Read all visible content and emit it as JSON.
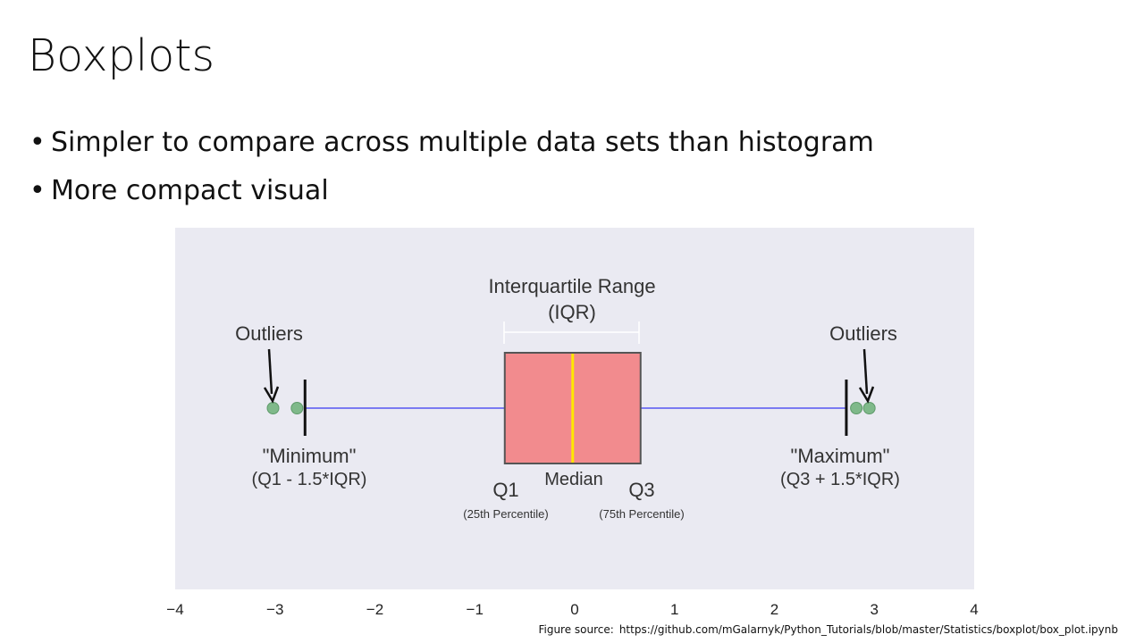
{
  "slide": {
    "title": "Boxplots",
    "bullets": [
      "Simpler to compare across multiple data sets than histogram",
      "More compact visual"
    ],
    "bullet_symbol": "•",
    "figure_source_label": "Figure source:",
    "figure_source_url": "https://github.com/mGalarnyk/Python_Tutorials/blob/master/Statistics/boxplot/box_plot.ipynb"
  },
  "chart_data": {
    "type": "boxplot",
    "orientation": "horizontal",
    "xlim": [
      -4,
      4
    ],
    "x_ticks": [
      "−4",
      "−3",
      "−2",
      "−1",
      "0",
      "1",
      "2",
      "3",
      "4"
    ],
    "box": {
      "q1": -0.7,
      "median": -0.02,
      "q3": 0.66,
      "whisker_low": -2.7,
      "whisker_high": 2.72
    },
    "outliers": [
      -3.02,
      -2.78,
      2.82,
      2.95
    ],
    "annotations": {
      "iqr_title": "Interquartile Range",
      "iqr_abbrev": "(IQR)",
      "outliers_left": "Outliers",
      "outliers_right": "Outliers",
      "minimum": "\"Minimum\"",
      "minimum_formula": "(Q1 - 1.5*IQR)",
      "maximum": "\"Maximum\"",
      "maximum_formula": "(Q3 + 1.5*IQR)",
      "q1": "Q1",
      "q1_sub": "(25th Percentile)",
      "median": "Median",
      "q3": "Q3",
      "q3_sub": "(75th Percentile)"
    },
    "colors": {
      "background": "#eaeaf2",
      "box_fill": "#f28b8e",
      "box_edge": "#555555",
      "median": "#ffe600",
      "whisker": "#7b7bf2",
      "cap": "#111111",
      "outlier_fill": "#7fb98a",
      "outlier_edge": "#5e9a6a"
    }
  }
}
